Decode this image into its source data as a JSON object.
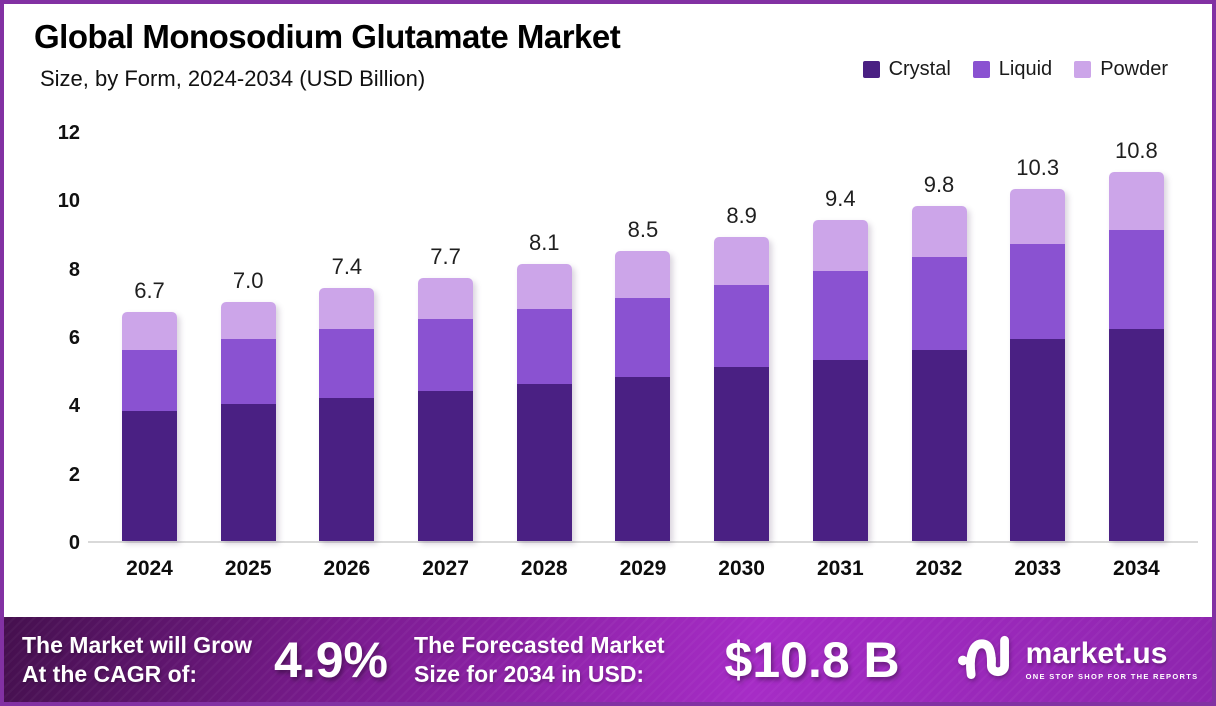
{
  "chart_data": {
    "type": "bar",
    "stacked": true,
    "title": "Global Monosodium Glutamate Market",
    "subtitle": "Size, by Form, 2024-2034 (USD Billion)",
    "categories": [
      "2024",
      "2025",
      "2026",
      "2027",
      "2028",
      "2029",
      "2030",
      "2031",
      "2032",
      "2033",
      "2034"
    ],
    "series": [
      {
        "name": "Crystal",
        "color": "#4A2083",
        "values": [
          3.8,
          4.0,
          4.2,
          4.4,
          4.6,
          4.8,
          5.1,
          5.3,
          5.6,
          5.9,
          6.2
        ]
      },
      {
        "name": "Liquid",
        "color": "#8A52D1",
        "values": [
          1.8,
          1.9,
          2.0,
          2.1,
          2.2,
          2.3,
          2.4,
          2.6,
          2.7,
          2.8,
          2.9
        ]
      },
      {
        "name": "Powder",
        "color": "#CCA5E9",
        "values": [
          1.1,
          1.1,
          1.2,
          1.2,
          1.3,
          1.4,
          1.4,
          1.5,
          1.5,
          1.6,
          1.7
        ]
      }
    ],
    "totals": [
      6.7,
      7.0,
      7.4,
      7.7,
      8.1,
      8.5,
      8.9,
      9.4,
      9.8,
      10.3,
      10.8
    ],
    "yticks": [
      0,
      2,
      4,
      6,
      8,
      10,
      12
    ],
    "ylim": [
      0,
      12
    ],
    "grid": false,
    "legend_position": "top-right",
    "xlabel": "",
    "ylabel": ""
  },
  "banner": {
    "growth_label_line1": "The Market will Grow",
    "growth_label_line2": "At the CAGR of:",
    "cagr_value": "4.9%",
    "forecast_label_line1": "The Forecasted Market",
    "forecast_label_line2": "Size for 2034 in USD:",
    "forecast_value": "$10.8 B",
    "logo": {
      "brand": "market.us",
      "tagline": "ONE STOP SHOP FOR THE REPORTS"
    }
  },
  "colors": {
    "border": "#8231A3",
    "crystal": "#4A2083",
    "liquid": "#8A52D1",
    "powder": "#CCA5E9",
    "baseline": "#D9D9D9",
    "banner_gradient_left": "#45104E",
    "banner_gradient_mid1": "#7A1B8F",
    "banner_gradient_mid2": "#A62CC6",
    "banner_gradient_right": "#8E25AE"
  }
}
